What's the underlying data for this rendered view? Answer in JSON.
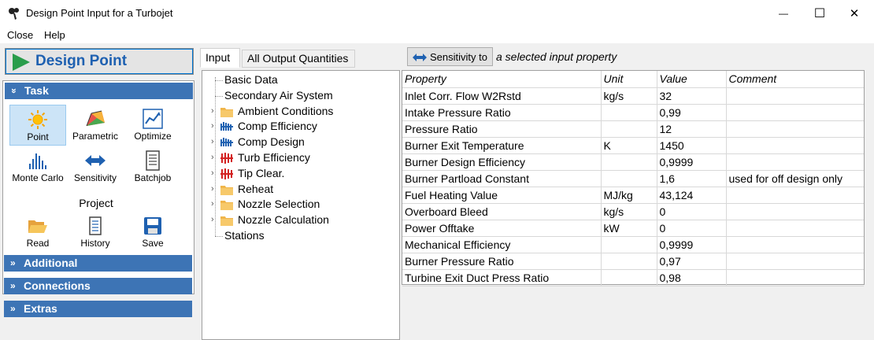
{
  "window": {
    "title": "Design Point Input for a Turbojet",
    "minimize_glyph": "—",
    "maximize_glyph": "☐",
    "close_glyph": "✕"
  },
  "menu": {
    "close": "Close",
    "help": "Help"
  },
  "left": {
    "design_point": "Design Point",
    "task_header": "Task",
    "tools": [
      "Point",
      "Parametric",
      "Optimize",
      "Monte Carlo",
      "Sensitivity",
      "Batchjob"
    ],
    "project_title": "Project",
    "project_tools": [
      "Read",
      "History",
      "Save"
    ],
    "sections": [
      "Additional",
      "Connections",
      "Extras"
    ],
    "chevron_collapse": "»",
    "chevron_expand": "»"
  },
  "tabs": {
    "input": "Input",
    "all_output": "All Output Quantities"
  },
  "tree": [
    {
      "label": "Basic Data",
      "icon": "none",
      "expand": false
    },
    {
      "label": "Secondary Air System",
      "icon": "none",
      "expand": false
    },
    {
      "label": "Ambient Conditions",
      "icon": "folder",
      "expand": true
    },
    {
      "label": "Comp Efficiency",
      "icon": "comp",
      "expand": true
    },
    {
      "label": "Comp Design",
      "icon": "comp",
      "expand": true
    },
    {
      "label": "Turb Efficiency",
      "icon": "turb",
      "expand": true
    },
    {
      "label": "Tip Clear.",
      "icon": "turb",
      "expand": true
    },
    {
      "label": "Reheat",
      "icon": "folder",
      "expand": true
    },
    {
      "label": "Nozzle Selection",
      "icon": "folder",
      "expand": true
    },
    {
      "label": "Nozzle Calculation",
      "icon": "folder",
      "expand": true
    },
    {
      "label": "Stations",
      "icon": "none",
      "expand": false
    }
  ],
  "sensitivity": {
    "button": "Sensitivity to",
    "text": "a selected input property"
  },
  "grid": {
    "headers": [
      "Property",
      "Unit",
      "Value",
      "Comment"
    ],
    "rows": [
      [
        "Inlet Corr. Flow W2Rstd",
        "kg/s",
        "32",
        ""
      ],
      [
        "Intake Pressure Ratio",
        "",
        "0,99",
        ""
      ],
      [
        "Pressure Ratio",
        "",
        "12",
        ""
      ],
      [
        "Burner Exit Temperature",
        "K",
        "1450",
        ""
      ],
      [
        "Burner Design Efficiency",
        "",
        "0,9999",
        ""
      ],
      [
        "Burner Partload Constant",
        "",
        "1,6",
        "used for off design only"
      ],
      [
        "Fuel Heating Value",
        "MJ/kg",
        "43,124",
        ""
      ],
      [
        "Overboard Bleed",
        "kg/s",
        "0",
        ""
      ],
      [
        "Power Offtake",
        "kW",
        "0",
        ""
      ],
      [
        "Mechanical Efficiency",
        "",
        "0,9999",
        ""
      ],
      [
        "Burner Pressure Ratio",
        "",
        "0,97",
        ""
      ],
      [
        "Turbine Exit Duct Press Ratio",
        "",
        "0,98",
        ""
      ]
    ]
  }
}
